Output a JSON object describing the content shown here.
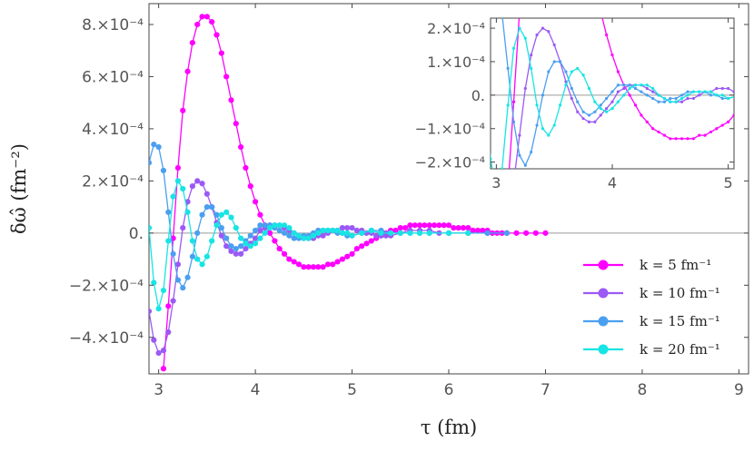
{
  "chart_data": {
    "type": "line",
    "xlabel": "τ (fm)",
    "ylabel": "δω̂ (fm⁻²)",
    "xlim": [
      2.9,
      9.1
    ],
    "ylim": [
      -0.00054,
      0.00088
    ],
    "x_ticks": [
      3,
      4,
      5,
      6,
      7,
      8,
      9
    ],
    "x_tick_labels": [
      "3",
      "4",
      "5",
      "6",
      "7",
      "8",
      "9"
    ],
    "y_ticks": [
      -0.0004,
      -0.0002,
      0,
      0.0002,
      0.0004,
      0.0006,
      0.0008
    ],
    "y_tick_labels": [
      "−4.×10⁻⁴",
      "−2.×10⁻⁴",
      "0.",
      "2.×10⁻⁴",
      "4.×10⁻⁴",
      "6.×10⁻⁴",
      "8.×10⁻⁴"
    ],
    "legend_position": "bottom-right",
    "series": [
      {
        "name": "k = 5 fm⁻¹",
        "color": "#ff00ff",
        "x": [
          3.05,
          3.1,
          3.15,
          3.2,
          3.25,
          3.3,
          3.35,
          3.4,
          3.45,
          3.5,
          3.55,
          3.6,
          3.65,
          3.7,
          3.75,
          3.8,
          3.85,
          3.9,
          3.95,
          4.0,
          4.05,
          4.1,
          4.15,
          4.2,
          4.25,
          4.3,
          4.35,
          4.4,
          4.45,
          4.5,
          4.55,
          4.6,
          4.65,
          4.7,
          4.75,
          4.8,
          4.85,
          4.9,
          4.95,
          5.0,
          5.05,
          5.1,
          5.15,
          5.2,
          5.25,
          5.3,
          5.35,
          5.4,
          5.45,
          5.5,
          5.55,
          5.6,
          5.65,
          5.7,
          5.75,
          5.8,
          5.85,
          5.9,
          5.95,
          6.0,
          6.05,
          6.1,
          6.15,
          6.2,
          6.25,
          6.3,
          6.35,
          6.4,
          6.45,
          6.5,
          6.55,
          6.6,
          6.7,
          6.8,
          6.9,
          7.0
        ],
        "y": [
          -0.00052,
          -0.00028,
          -2e-05,
          0.00025,
          0.00047,
          0.00062,
          0.00073,
          0.0008,
          0.00083,
          0.00083,
          0.00081,
          0.00076,
          0.00069,
          0.0006,
          0.00051,
          0.00042,
          0.00033,
          0.00025,
          0.00018,
          0.00012,
          7e-05,
          3e-05,
          0.0,
          -3e-05,
          -6e-05,
          -8e-05,
          -0.0001,
          -0.00011,
          -0.00012,
          -0.00013,
          -0.00013,
          -0.00013,
          -0.00013,
          -0.00013,
          -0.00012,
          -0.00012,
          -0.00011,
          -0.0001,
          -9e-05,
          -8e-05,
          -6e-05,
          -5e-05,
          -4e-05,
          -3e-05,
          -2e-05,
          -1e-05,
          0.0,
          1e-05,
          1e-05,
          2e-05,
          2e-05,
          3e-05,
          3e-05,
          3e-05,
          3e-05,
          3e-05,
          3e-05,
          3e-05,
          3e-05,
          3e-05,
          2e-05,
          2e-05,
          2e-05,
          2e-05,
          1e-05,
          1e-05,
          1e-05,
          1e-05,
          0.0,
          0.0,
          0.0,
          0.0,
          0.0,
          0.0,
          0.0,
          0.0
        ]
      },
      {
        "name": "k = 10 fm⁻¹",
        "color": "#9b59f5",
        "x": [
          2.9,
          2.95,
          3.0,
          3.05,
          3.1,
          3.15,
          3.2,
          3.25,
          3.3,
          3.35,
          3.4,
          3.45,
          3.5,
          3.55,
          3.6,
          3.65,
          3.7,
          3.75,
          3.8,
          3.85,
          3.9,
          3.95,
          4.0,
          4.05,
          4.1,
          4.15,
          4.2,
          4.25,
          4.3,
          4.35,
          4.4,
          4.45,
          4.5,
          4.55,
          4.6,
          4.65,
          4.7,
          4.75,
          4.8,
          4.85,
          4.9,
          4.95,
          5.0,
          5.05,
          5.1,
          5.15,
          5.2,
          5.25,
          5.3,
          5.35,
          5.4,
          5.5,
          5.6,
          5.7,
          5.8,
          5.9,
          6.0,
          6.2,
          6.4,
          6.6
        ],
        "y": [
          -0.0003,
          -0.00041,
          -0.00046,
          -0.00045,
          -0.00038,
          -0.00026,
          -0.00012,
          2e-05,
          0.00012,
          0.00018,
          0.0002,
          0.00019,
          0.00015,
          0.0001,
          4e-05,
          -1e-05,
          -5e-05,
          -7e-05,
          -8e-05,
          -8e-05,
          -6e-05,
          -4e-05,
          -2e-05,
          1e-05,
          2e-05,
          3e-05,
          3e-05,
          3e-05,
          2e-05,
          1e-05,
          0.0,
          -1e-05,
          -2e-05,
          -2e-05,
          -2e-05,
          -1e-05,
          -1e-05,
          0.0,
          1e-05,
          1e-05,
          2e-05,
          2e-05,
          2e-05,
          1e-05,
          1e-05,
          0.0,
          0.0,
          -1e-05,
          -1e-05,
          -1e-05,
          -1e-05,
          0.0,
          1e-05,
          1e-05,
          1e-05,
          0.0,
          0.0,
          0.0,
          0.0,
          0.0
        ]
      },
      {
        "name": "k = 15 fm⁻¹",
        "color": "#4a9ff0",
        "x": [
          2.9,
          2.95,
          3.0,
          3.05,
          3.1,
          3.15,
          3.2,
          3.25,
          3.3,
          3.35,
          3.4,
          3.45,
          3.5,
          3.55,
          3.6,
          3.65,
          3.7,
          3.75,
          3.8,
          3.85,
          3.9,
          3.95,
          4.0,
          4.05,
          4.1,
          4.15,
          4.2,
          4.25,
          4.3,
          4.35,
          4.4,
          4.45,
          4.5,
          4.55,
          4.6,
          4.65,
          4.7,
          4.75,
          4.8,
          4.85,
          4.9,
          4.95,
          5.0,
          5.1,
          5.2,
          5.3,
          5.4,
          5.5,
          5.6,
          5.7,
          5.8,
          6.0,
          6.2,
          6.4,
          6.6
        ],
        "y": [
          0.00027,
          0.00034,
          0.00033,
          0.00024,
          8e-05,
          -8e-05,
          -0.00018,
          -0.00021,
          -0.00017,
          -9e-05,
          0.0,
          7e-05,
          0.0001,
          0.0001,
          7e-05,
          2e-05,
          -2e-05,
          -5e-05,
          -6e-05,
          -5e-05,
          -3e-05,
          -1e-05,
          1e-05,
          3e-05,
          3e-05,
          3e-05,
          2e-05,
          1e-05,
          0.0,
          -1e-05,
          -2e-05,
          -2e-05,
          -1e-05,
          -1e-05,
          0.0,
          1e-05,
          1e-05,
          1e-05,
          1e-05,
          0.0,
          0.0,
          -1e-05,
          -1e-05,
          0.0,
          1e-05,
          1e-05,
          0.0,
          0.0,
          0.0,
          0.0,
          0.0,
          0.0,
          0.0,
          0.0,
          0.0
        ]
      },
      {
        "name": "k = 20 fm⁻¹",
        "color": "#18e4e4",
        "x": [
          2.9,
          2.95,
          3.0,
          3.05,
          3.1,
          3.15,
          3.2,
          3.25,
          3.3,
          3.35,
          3.4,
          3.45,
          3.5,
          3.55,
          3.6,
          3.65,
          3.7,
          3.75,
          3.8,
          3.85,
          3.9,
          3.95,
          4.0,
          4.05,
          4.1,
          4.15,
          4.2,
          4.25,
          4.3,
          4.35,
          4.4,
          4.45,
          4.5,
          4.55,
          4.6,
          4.65,
          4.7,
          4.75,
          4.8,
          4.85,
          4.9,
          4.95,
          5.0,
          5.1,
          5.2,
          5.3,
          5.4,
          5.5,
          5.6,
          5.7,
          5.8,
          6.0,
          6.2
        ],
        "y": [
          2e-05,
          -0.00019,
          -0.00029,
          -0.00022,
          -3e-05,
          0.00014,
          0.0002,
          0.00017,
          8e-05,
          -3e-05,
          -0.0001,
          -0.00012,
          -9e-05,
          -3e-05,
          3e-05,
          7e-05,
          8e-05,
          6e-05,
          2e-05,
          -2e-05,
          -4e-05,
          -5e-05,
          -4e-05,
          -2e-05,
          0.0,
          2e-05,
          3e-05,
          3e-05,
          3e-05,
          2e-05,
          0.0,
          -1e-05,
          -2e-05,
          -2e-05,
          -1e-05,
          0.0,
          1e-05,
          1e-05,
          1e-05,
          1e-05,
          0.0,
          0.0,
          -1e-05,
          0.0,
          1e-05,
          0.0,
          0.0,
          0.0,
          0.0,
          0.0,
          0.0,
          0.0,
          0.0
        ]
      }
    ],
    "inset": {
      "type": "line",
      "xlim": [
        2.95,
        5.05
      ],
      "ylim": [
        -0.00022,
        0.00023
      ],
      "x_ticks": [
        3,
        4,
        5
      ],
      "x_tick_labels": [
        "3",
        "4",
        "5"
      ],
      "y_ticks": [
        -0.0002,
        -0.0001,
        0,
        0.0001,
        0.0002
      ],
      "y_tick_labels": [
        "−2.×10⁻⁴",
        "−1.×10⁻⁴",
        "0.",
        "1.×10⁻⁴",
        "2.×10⁻⁴"
      ]
    }
  }
}
